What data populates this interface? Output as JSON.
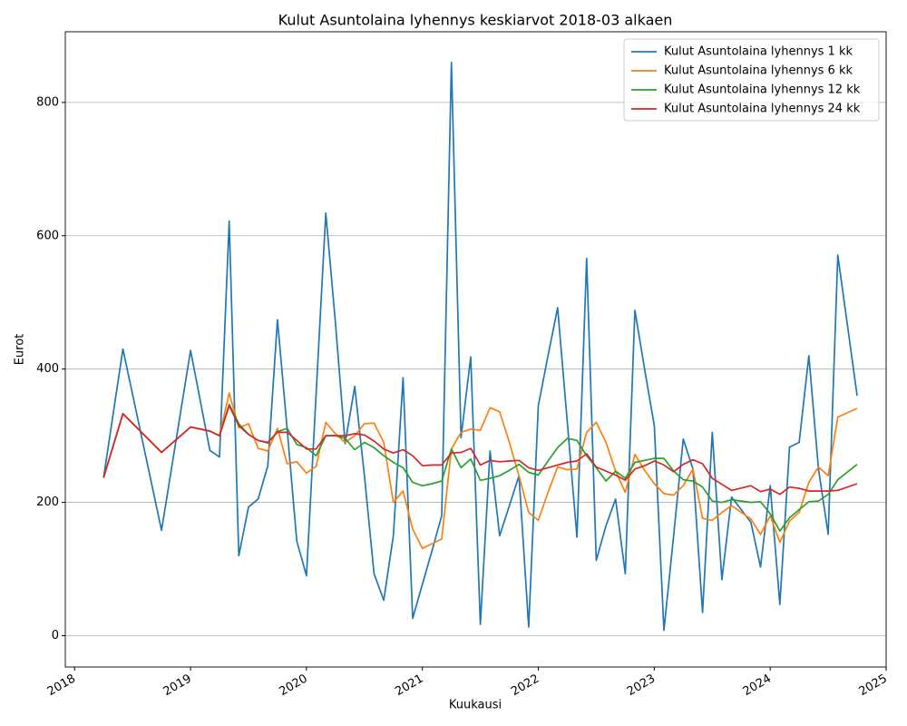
{
  "chart_data": {
    "type": "line",
    "title": "Kulut Asuntolaina lyhennys keskiarvot 2018-03 alkaen",
    "xlabel": "Kuukausi",
    "ylabel": "Eurot",
    "x": [
      "2018-03",
      "2018-05",
      "2018-09",
      "2018-12",
      "2019-02",
      "2019-03",
      "2019-04",
      "2019-05",
      "2019-06",
      "2019-07",
      "2019-08",
      "2019-09",
      "2019-10",
      "2019-11",
      "2019-12",
      "2020-01",
      "2020-02",
      "2020-03",
      "2020-04",
      "2020-05",
      "2020-06",
      "2020-07",
      "2020-08",
      "2020-09",
      "2020-10",
      "2020-11",
      "2020-12",
      "2021-01",
      "2021-02",
      "2021-03",
      "2021-04",
      "2021-05",
      "2021-06",
      "2021-07",
      "2021-08",
      "2021-09",
      "2021-10",
      "2021-11",
      "2021-12",
      "2022-01",
      "2022-02",
      "2022-03",
      "2022-04",
      "2022-05",
      "2022-06",
      "2022-07",
      "2022-08",
      "2022-09",
      "2022-10",
      "2022-11",
      "2022-12",
      "2023-01",
      "2023-02",
      "2023-03",
      "2023-04",
      "2023-05",
      "2023-06",
      "2023-07",
      "2023-08",
      "2023-10",
      "2023-11",
      "2023-12",
      "2024-01",
      "2024-02",
      "2024-03",
      "2024-04",
      "2024-05",
      "2024-06",
      "2024-07",
      "2024-09"
    ],
    "series": [
      {
        "name": "Kulut Asuntolaina lyhennys 1 kk",
        "color": "#1f77b4",
        "values": [
          237,
          430,
          158,
          428,
          278,
          268,
          622,
          120,
          193,
          205,
          255,
          474,
          310,
          142,
          90,
          362,
          634,
          470,
          288,
          374,
          240,
          93,
          53,
          150,
          387,
          26,
          77,
          128,
          180,
          860,
          297,
          418,
          17,
          277,
          150,
          195,
          240,
          13,
          345,
          420,
          492,
          320,
          148,
          566,
          113,
          165,
          205,
          93,
          488,
          400,
          315,
          8,
          150,
          295,
          250,
          35,
          305,
          84,
          208,
          170,
          103,
          225,
          47,
          283,
          290,
          420,
          250,
          152,
          571,
          360
        ]
      },
      {
        "name": "Kulut Asuntolaina lyhennys 6 kk",
        "color": "#ff7f0e",
        "values": [
          237,
          333,
          275,
          313,
          307,
          300,
          364,
          312,
          318,
          281,
          277,
          311,
          258,
          261,
          244,
          254,
          320,
          303,
          290,
          300,
          318,
          319,
          290,
          200,
          217,
          160,
          131,
          138,
          145,
          280,
          305,
          310,
          308,
          342,
          336,
          290,
          240,
          185,
          173,
          215,
          253,
          249,
          250,
          305,
          320,
          290,
          247,
          215,
          272,
          248,
          228,
          213,
          211,
          225,
          250,
          176,
          173,
          185,
          195,
          175,
          152,
          180,
          140,
          172,
          185,
          230,
          253,
          240,
          328,
          341
        ]
      },
      {
        "name": "Kulut Asuntolaina lyhennys 12 kk",
        "color": "#2ca02c",
        "values": [
          237,
          333,
          275,
          313,
          307,
          300,
          347,
          318,
          302,
          293,
          289,
          306,
          311,
          287,
          282,
          270,
          300,
          300,
          296,
          279,
          290,
          282,
          270,
          260,
          252,
          230,
          225,
          228,
          232,
          280,
          252,
          265,
          233,
          236,
          240,
          248,
          257,
          245,
          241,
          262,
          282,
          296,
          293,
          270,
          252,
          232,
          247,
          236,
          260,
          263,
          266,
          266,
          247,
          234,
          232,
          223,
          202,
          200,
          204,
          200,
          201,
          183,
          157,
          177,
          189,
          201,
          202,
          212,
          234,
          257
        ]
      },
      {
        "name": "Kulut Asuntolaina lyhennys 24 kk",
        "color": "#d62728",
        "values": [
          237,
          333,
          275,
          313,
          307,
          300,
          345,
          315,
          302,
          293,
          290,
          305,
          305,
          293,
          280,
          280,
          300,
          300,
          300,
          303,
          301,
          292,
          280,
          274,
          279,
          270,
          255,
          256,
          256,
          274,
          275,
          281,
          256,
          263,
          261,
          262,
          263,
          252,
          248,
          252,
          256,
          260,
          262,
          273,
          253,
          247,
          241,
          233,
          250,
          255,
          262,
          256,
          246,
          257,
          264,
          258,
          236,
          227,
          218,
          225,
          216,
          220,
          212,
          223,
          221,
          217,
          217,
          217,
          218,
          228
        ]
      }
    ],
    "xlim": [
      2017.92,
      2025.0
    ],
    "xticks": [
      2018,
      2019,
      2020,
      2021,
      2022,
      2023,
      2024,
      2025
    ],
    "ylim": [
      -47,
      906
    ],
    "yticks": [
      0,
      200,
      400,
      600,
      800
    ],
    "grid": "y",
    "legend": "upper right"
  }
}
